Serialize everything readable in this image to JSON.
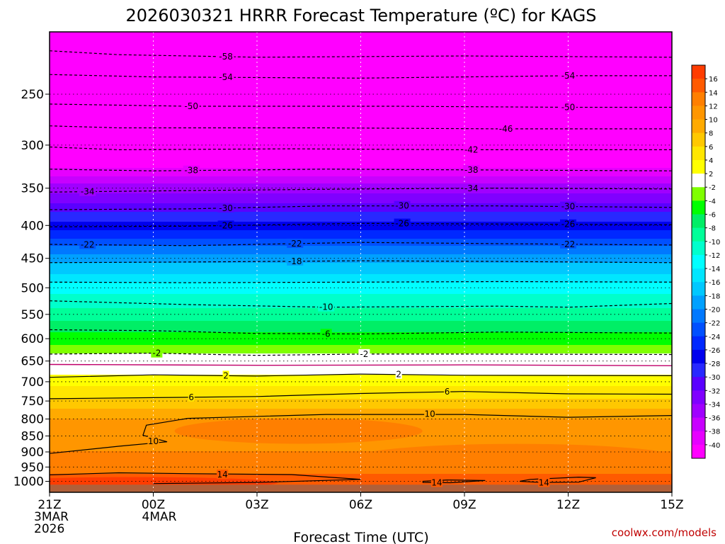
{
  "chart_data": {
    "type": "heatmap",
    "title": "2026030321 HRRR Forecast Temperature (ºC) for KAGS",
    "xlabel": "Forecast Time (UTC)",
    "ylabel": "",
    "credit": "coolwx.com/models",
    "x_axis": {
      "range_hours": [
        0,
        18
      ],
      "ticks": [
        {
          "hour": 0,
          "lines": [
            "21Z",
            "3MAR",
            "2026"
          ]
        },
        {
          "hour": 3,
          "lines": [
            "00Z",
            "4MAR"
          ]
        },
        {
          "hour": 6,
          "lines": [
            "03Z"
          ]
        },
        {
          "hour": 9,
          "lines": [
            "06Z"
          ]
        },
        {
          "hour": 12,
          "lines": [
            "09Z"
          ]
        },
        {
          "hour": 15,
          "lines": [
            "12Z"
          ]
        },
        {
          "hour": 18,
          "lines": [
            "15Z"
          ]
        }
      ]
    },
    "y_axis": {
      "variable": "pressure (mb)",
      "scale": "log",
      "reversed": true,
      "range": [
        1040,
        200
      ],
      "ticks": [
        250,
        300,
        350,
        400,
        450,
        500,
        550,
        600,
        650,
        700,
        750,
        800,
        850,
        900,
        950,
        1000
      ]
    },
    "grid": true,
    "legend": "right",
    "colorbar": {
      "bounds": [
        -42,
        -40,
        -38,
        -36,
        -34,
        -32,
        -30,
        -28,
        -26,
        -24,
        -22,
        -20,
        -18,
        -16,
        -14,
        -12,
        -10,
        -8,
        -6,
        -4,
        -2,
        2,
        4,
        6,
        8,
        10,
        12,
        14,
        16,
        18
      ],
      "colors": [
        "#ff00ff",
        "#e600ff",
        "#c800ff",
        "#a000ff",
        "#8000ff",
        "#5a00ff",
        "#2828ff",
        "#0000ee",
        "#0028ff",
        "#0050ff",
        "#0078ff",
        "#00a0ff",
        "#00c8ff",
        "#00e6ff",
        "#00ffff",
        "#00ffcc",
        "#00ff99",
        "#00ee66",
        "#00ff00",
        "#7fff00",
        "#ffffff",
        "#ffff00",
        "#ffe600",
        "#ffc800",
        "#ffaa00",
        "#ff9600",
        "#ff7f00",
        "#ff5a00",
        "#ff3c00"
      ],
      "tick_labels": [
        "16",
        "14",
        "12",
        "10",
        "8",
        "6",
        "4",
        "2",
        "-2",
        "-4",
        "-6",
        "-8",
        "-10",
        "-12",
        "-14",
        "-16",
        "-18",
        "-20",
        "-22",
        "-24",
        "-26",
        "-28",
        "-30",
        "-32",
        "-34",
        "-36",
        "-38",
        "-40"
      ]
    },
    "temperature_profile": [
      {
        "p": 210,
        "t": -60
      },
      {
        "p": 230,
        "t": -56
      },
      {
        "p": 250,
        "t": -53
      },
      {
        "p": 275,
        "t": -48
      },
      {
        "p": 300,
        "t": -44
      },
      {
        "p": 325,
        "t": -40
      },
      {
        "p": 350,
        "t": -35
      },
      {
        "p": 375,
        "t": -31
      },
      {
        "p": 400,
        "t": -27
      },
      {
        "p": 425,
        "t": -23
      },
      {
        "p": 450,
        "t": -19
      },
      {
        "p": 475,
        "t": -16
      },
      {
        "p": 500,
        "t": -13
      },
      {
        "p": 525,
        "t": -11
      },
      {
        "p": 550,
        "t": -9
      },
      {
        "p": 575,
        "t": -7
      },
      {
        "p": 600,
        "t": -5
      },
      {
        "p": 625,
        "t": -3
      },
      {
        "p": 640,
        "t": -1
      },
      {
        "p": 655,
        "t": 0
      },
      {
        "p": 670,
        "t": 1
      },
      {
        "p": 690,
        "t": 2.5
      },
      {
        "p": 720,
        "t": 4.5
      },
      {
        "p": 750,
        "t": 6.5
      },
      {
        "p": 780,
        "t": 8.5
      },
      {
        "p": 800,
        "t": 10
      },
      {
        "p": 830,
        "t": 10.8
      },
      {
        "p": 860,
        "t": 11.2
      },
      {
        "p": 900,
        "t": 12
      },
      {
        "p": 950,
        "t": 13
      },
      {
        "p": 980,
        "t": 14.2
      },
      {
        "p": 1000,
        "t": 15
      },
      {
        "p": 1020,
        "t": 16
      }
    ],
    "contours": [
      {
        "value": -58,
        "style": "dashed",
        "points": [
          [
            0,
            214
          ],
          [
            2,
            217
          ],
          [
            6,
            219
          ],
          [
            12,
            218
          ],
          [
            18,
            219
          ]
        ],
        "labels": [
          {
            "hour": 5.1
          }
        ]
      },
      {
        "value": -54,
        "style": "dashed",
        "points": [
          [
            0,
            233
          ],
          [
            3,
            235
          ],
          [
            9,
            236
          ],
          [
            15,
            234
          ],
          [
            18,
            234
          ]
        ],
        "labels": [
          {
            "hour": 5.1
          },
          {
            "hour": 15
          }
        ]
      },
      {
        "value": -50,
        "style": "dashed",
        "points": [
          [
            0,
            259
          ],
          [
            4,
            261
          ],
          [
            10,
            261
          ],
          [
            15,
            262
          ],
          [
            18,
            262
          ]
        ],
        "labels": [
          {
            "hour": 4.1
          },
          {
            "hour": 15
          }
        ]
      },
      {
        "value": -46,
        "style": "dashed",
        "points": [
          [
            0,
            280
          ],
          [
            2,
            282
          ],
          [
            8,
            282
          ],
          [
            13,
            283
          ],
          [
            18,
            283
          ]
        ],
        "labels": [
          {
            "hour": 13.2
          }
        ]
      },
      {
        "value": -42,
        "style": "dashed",
        "points": [
          [
            0,
            302
          ],
          [
            2,
            305
          ],
          [
            7,
            304
          ],
          [
            12,
            305
          ],
          [
            18,
            305
          ]
        ],
        "labels": [
          {
            "hour": 12.2
          }
        ]
      },
      {
        "value": -38,
        "style": "dashed",
        "points": [
          [
            0,
            327
          ],
          [
            3,
            329
          ],
          [
            8,
            327
          ],
          [
            13,
            328
          ],
          [
            18,
            329
          ]
        ],
        "labels": [
          {
            "hour": 4.1
          },
          {
            "hour": 12.2
          }
        ]
      },
      {
        "value": -34,
        "style": "dashed",
        "points": [
          [
            0,
            355
          ],
          [
            4,
            353
          ],
          [
            9,
            351
          ],
          [
            13,
            350
          ],
          [
            18,
            351
          ]
        ],
        "labels": [
          {
            "hour": 1.1
          },
          {
            "hour": 12.2
          }
        ]
      },
      {
        "value": -30,
        "style": "dashed",
        "points": [
          [
            0,
            378
          ],
          [
            4,
            377
          ],
          [
            8,
            373
          ],
          [
            13,
            373
          ],
          [
            18,
            375
          ]
        ],
        "labels": [
          {
            "hour": 5.1
          },
          {
            "hour": 10.2
          },
          {
            "hour": 15
          }
        ]
      },
      {
        "value": -26,
        "style": "dashed",
        "points": [
          [
            0,
            402
          ],
          [
            4,
            401
          ],
          [
            9,
            397
          ],
          [
            13,
            398
          ],
          [
            18,
            399
          ]
        ],
        "labels": [
          {
            "hour": 5.1
          },
          {
            "hour": 10.2
          },
          {
            "hour": 15
          }
        ]
      },
      {
        "value": -22,
        "style": "dashed",
        "points": [
          [
            0,
            428
          ],
          [
            4,
            430
          ],
          [
            9,
            425
          ],
          [
            13,
            427
          ],
          [
            18,
            429
          ]
        ],
        "labels": [
          {
            "hour": 1.1
          },
          {
            "hour": 7.1
          },
          {
            "hour": 15
          }
        ]
      },
      {
        "value": -18,
        "style": "dashed",
        "points": [
          [
            0,
            457
          ],
          [
            4,
            456
          ],
          [
            9,
            454
          ],
          [
            13,
            455
          ],
          [
            18,
            457
          ]
        ],
        "labels": [
          {
            "hour": 7.1
          }
        ]
      },
      {
        "value": -14,
        "style": "dashed",
        "points": [
          [
            0,
            490
          ],
          [
            4,
            491
          ],
          [
            9,
            490
          ],
          [
            13,
            489
          ],
          [
            18,
            490
          ]
        ],
        "labels": []
      },
      {
        "value": -10,
        "style": "dashed",
        "points": [
          [
            0,
            524
          ],
          [
            4,
            531
          ],
          [
            8,
            536
          ],
          [
            13,
            534
          ],
          [
            15,
            536
          ],
          [
            18,
            529
          ]
        ],
        "labels": [
          {
            "hour": 8
          }
        ]
      },
      {
        "value": -6,
        "style": "dashed",
        "points": [
          [
            0,
            581
          ],
          [
            3,
            583
          ],
          [
            6,
            589
          ],
          [
            9,
            590
          ],
          [
            13,
            586
          ],
          [
            18,
            588
          ]
        ],
        "labels": [
          {
            "hour": 8
          }
        ]
      },
      {
        "value": -2,
        "style": "dashed",
        "points": [
          [
            0,
            634
          ],
          [
            3,
            632
          ],
          [
            6,
            637
          ],
          [
            9,
            634
          ],
          [
            12,
            634
          ],
          [
            18,
            635
          ]
        ],
        "labels": [
          {
            "hour": 3.1
          },
          {
            "hour": 9.1
          }
        ]
      },
      {
        "value": 0,
        "style": "solid-magenta",
        "points": [
          [
            0,
            658
          ],
          [
            6,
            660
          ],
          [
            12,
            659
          ],
          [
            18,
            661
          ]
        ],
        "labels": []
      },
      {
        "value": 2,
        "style": "solid",
        "points": [
          [
            0,
            689
          ],
          [
            3,
            683
          ],
          [
            6,
            686
          ],
          [
            9,
            681
          ],
          [
            12,
            684
          ],
          [
            18,
            685
          ]
        ],
        "labels": [
          {
            "hour": 5.1
          },
          {
            "hour": 10.1
          }
        ]
      },
      {
        "value": 6,
        "style": "solid",
        "points": [
          [
            0,
            744
          ],
          [
            3,
            741
          ],
          [
            6,
            738
          ],
          [
            9,
            730
          ],
          [
            12,
            725
          ],
          [
            15,
            731
          ],
          [
            18,
            732
          ]
        ],
        "labels": [
          {
            "hour": 4.1
          },
          {
            "hour": 11.5
          }
        ]
      },
      {
        "value": 10,
        "style": "solid",
        "points": [
          [
            0,
            905
          ],
          [
            2,
            882
          ],
          [
            3.4,
            868
          ],
          [
            2.7,
            848
          ],
          [
            2.8,
            818
          ],
          [
            4,
            798
          ],
          [
            8,
            787
          ],
          [
            12,
            787
          ],
          [
            15,
            795
          ],
          [
            18,
            790
          ]
        ],
        "labels": [
          {
            "hour": 3.0,
            "p": 866
          },
          {
            "hour": 11.0,
            "p": 786
          }
        ]
      },
      {
        "value": 14,
        "style": "solid",
        "points": [
          [
            0,
            977
          ],
          [
            2,
            970
          ],
          [
            4,
            973
          ],
          [
            7,
            976
          ],
          [
            9,
            993
          ],
          [
            6,
            1004
          ],
          [
            3,
            1008
          ]
        ],
        "labels": [
          {
            "hour": 5.0,
            "p": 976
          },
          {
            "hour": 11.2,
            "p": 1005
          },
          {
            "hour": 14.3,
            "p": 1005
          }
        ]
      }
    ],
    "closed_contours": [
      {
        "value": 14,
        "points": [
          [
            10.8,
            1000
          ],
          [
            11.5,
            995
          ],
          [
            12.6,
            997
          ],
          [
            11.6,
            1005
          ],
          [
            10.8,
            1004
          ]
        ]
      },
      {
        "value": 14,
        "points": [
          [
            13.9,
            993
          ],
          [
            15.3,
            985
          ],
          [
            15.8,
            987
          ],
          [
            15.3,
            1003
          ],
          [
            14.2,
            1004
          ],
          [
            13.6,
            1000
          ]
        ]
      }
    ]
  }
}
